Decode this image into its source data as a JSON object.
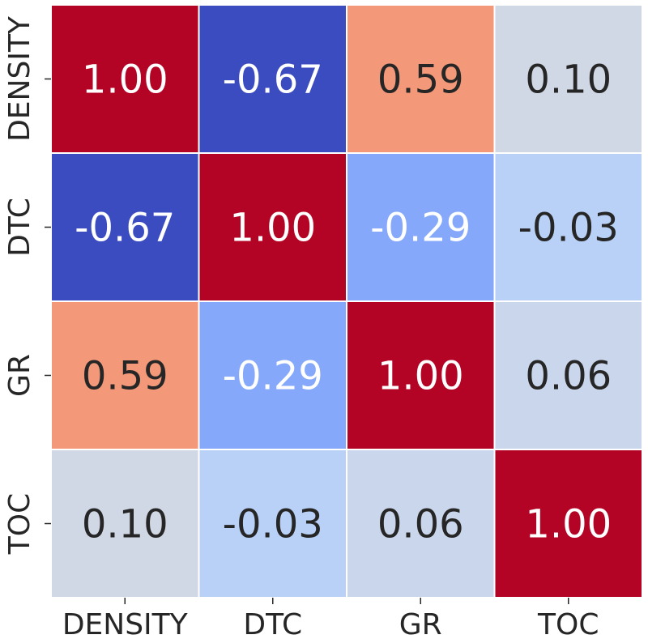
{
  "chart_data": {
    "type": "heatmap",
    "title": "",
    "xlabel": "",
    "ylabel": "",
    "x_categories": [
      "DENSITY",
      "DTC",
      "GR",
      "TOC"
    ],
    "y_categories": [
      "DENSITY",
      "DTC",
      "GR",
      "TOC"
    ],
    "values": [
      [
        1.0,
        -0.67,
        0.59,
        0.1
      ],
      [
        -0.67,
        1.0,
        -0.29,
        -0.03
      ],
      [
        0.59,
        -0.29,
        1.0,
        0.06
      ],
      [
        0.1,
        -0.03,
        0.06,
        1.0
      ]
    ],
    "value_range": [
      -0.67,
      1.0
    ],
    "colormap": "coolwarm",
    "colors": {
      "low": "#3b4cc0",
      "mid": "#dddcdc",
      "high": "#b40426",
      "text_dark": "#262626",
      "text_light": "#ffffff",
      "cell_border": "#ffffff"
    },
    "legend": "none",
    "grid": false
  }
}
